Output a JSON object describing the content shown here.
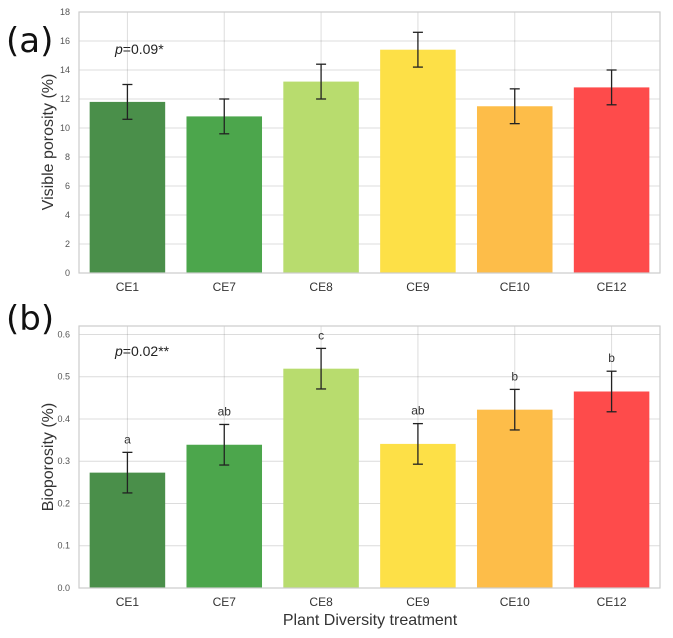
{
  "figure": {
    "xlabel": "Plant Diversity treatment"
  },
  "chart_data": [
    {
      "type": "bar",
      "panel_label": "(a)",
      "title": "",
      "annotation": {
        "p_symbol": "p",
        "p_text": "=0.09*"
      },
      "categories": [
        "CE1",
        "CE7",
        "CE8",
        "CE9",
        "CE10",
        "CE12"
      ],
      "values": [
        11.8,
        10.8,
        13.2,
        15.4,
        11.5,
        12.8
      ],
      "error": [
        1.2,
        1.2,
        1.2,
        1.2,
        1.2,
        1.2
      ],
      "colors": [
        "#4a8f4a",
        "#4ca64c",
        "#b8dc6e",
        "#fde047",
        "#fdbd49",
        "#fe4b4b"
      ],
      "xlabel": "",
      "ylabel": "Visible porosity (%)",
      "ylim": [
        0,
        18
      ],
      "yticks": [
        "0",
        "2",
        "4",
        "6",
        "8",
        "10",
        "12",
        "14",
        "16",
        "18"
      ],
      "ytick_values": [
        0,
        2,
        4,
        6,
        8,
        10,
        12,
        14,
        16,
        18
      ],
      "letters": [
        "",
        "",
        "",
        "",
        "",
        ""
      ],
      "grid": true
    },
    {
      "type": "bar",
      "panel_label": "(b)",
      "title": "",
      "annotation": {
        "p_symbol": "p",
        "p_text": "=0.02**"
      },
      "categories": [
        "CE1",
        "CE7",
        "CE8",
        "CE9",
        "CE10",
        "CE12"
      ],
      "values": [
        0.273,
        0.339,
        0.519,
        0.341,
        0.422,
        0.465
      ],
      "error": [
        0.048,
        0.048,
        0.048,
        0.048,
        0.048,
        0.048
      ],
      "colors": [
        "#4a8f4a",
        "#4ca64c",
        "#b8dc6e",
        "#fde047",
        "#fdbd49",
        "#fe4b4b"
      ],
      "xlabel": "Plant Diversity treatment",
      "ylabel": "Bioporosity (%)",
      "ylim": [
        0,
        0.62
      ],
      "yticks": [
        "0.0",
        "0.1",
        "0.2",
        "0.3",
        "0.4",
        "0.5",
        "0.6"
      ],
      "ytick_values": [
        0,
        0.1,
        0.2,
        0.3,
        0.4,
        0.5,
        0.6
      ],
      "letters": [
        "a",
        "ab",
        "c",
        "ab",
        "b",
        "b"
      ],
      "grid": true
    }
  ]
}
